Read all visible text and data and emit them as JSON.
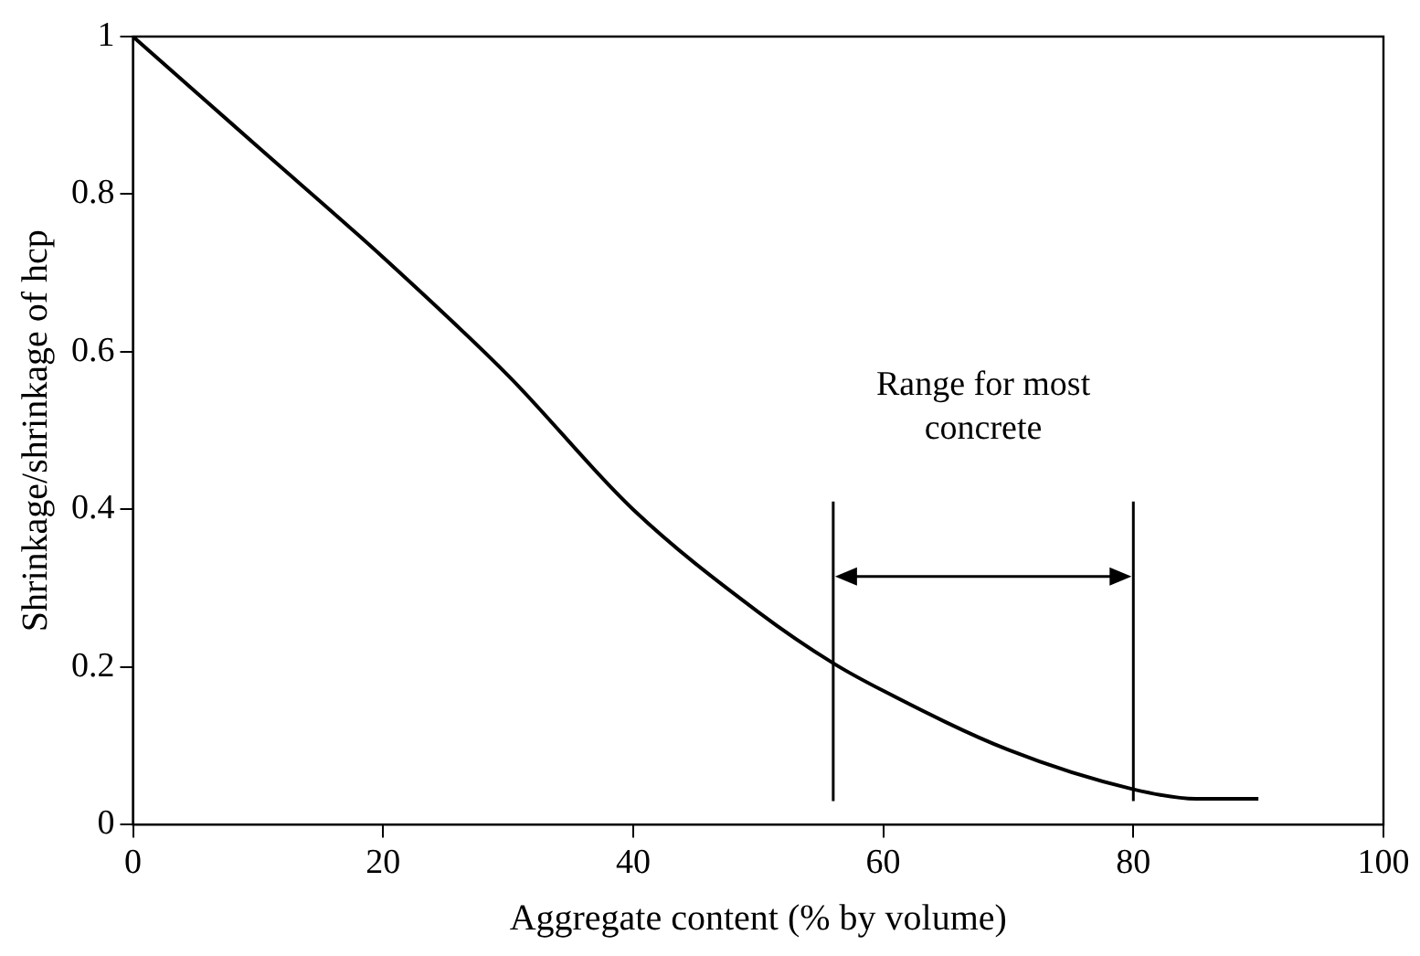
{
  "chart_data": {
    "type": "line",
    "xlabel": "Aggregate content (% by volume)",
    "ylabel": "Shrinkage/shrinkage of hcp",
    "x": [
      0,
      10,
      20,
      30,
      40,
      50,
      56,
      60,
      70,
      80,
      85,
      90
    ],
    "series": [
      {
        "color": "#000000",
        "values": [
          1.0,
          0.86,
          0.72,
          0.57,
          0.4,
          0.27,
          0.205,
          0.17,
          0.095,
          0.045,
          0.033,
          0.033
        ]
      }
    ],
    "xlim": [
      0,
      100
    ],
    "xticks": [
      0,
      20,
      40,
      60,
      80,
      100
    ],
    "ylim": [
      0,
      1
    ],
    "yticks": [
      0,
      0.2,
      0.4,
      0.6,
      0.8,
      1
    ],
    "grid": false,
    "legend": false,
    "marker": "none",
    "line_style": "solid",
    "ref_lines": [
      {
        "axis": "x",
        "value": 56,
        "color": "#000000"
      },
      {
        "axis": "x",
        "value": 80,
        "color": "#000000"
      }
    ],
    "annotations": [
      "Range for most concrete"
    ]
  }
}
